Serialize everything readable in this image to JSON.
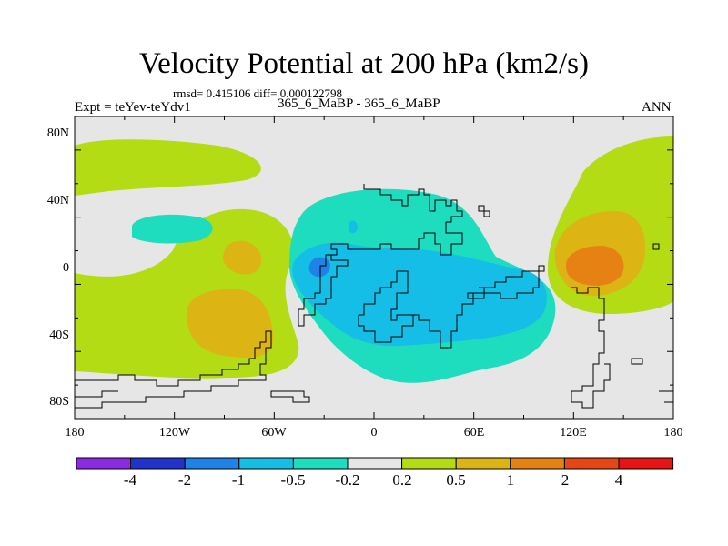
{
  "title": "Velocity Potential at 200 hPa (km2/s)",
  "stats": "rmsd= 0.415106 diff= 0.000122798",
  "experiment": "Expt = teYev-teYdv1",
  "subtitle": "365_6_MaBP - 365_6_MaBP",
  "season": "ANN",
  "axes": {
    "y_labels": [
      "80N",
      "40N",
      "0",
      "40S",
      "80S"
    ],
    "x_labels": [
      "180",
      "120W",
      "60W",
      "0",
      "60E",
      "120E",
      "180"
    ]
  },
  "colorbar": {
    "labels": [
      "-4",
      "-2",
      "-1",
      "-0.5",
      "-0.2",
      "0.2",
      "0.5",
      "1",
      "2",
      "4"
    ],
    "colors": [
      "#8a2be2",
      "#2233cc",
      "#1e82e6",
      "#14bee6",
      "#1edcbe",
      "#e6e6e6",
      "#b4dc14",
      "#dcb414",
      "#e68214",
      "#e64614",
      "#e61414"
    ]
  },
  "colors": {
    "background_field": "#e6e6e6",
    "coastline": "#000000"
  }
}
